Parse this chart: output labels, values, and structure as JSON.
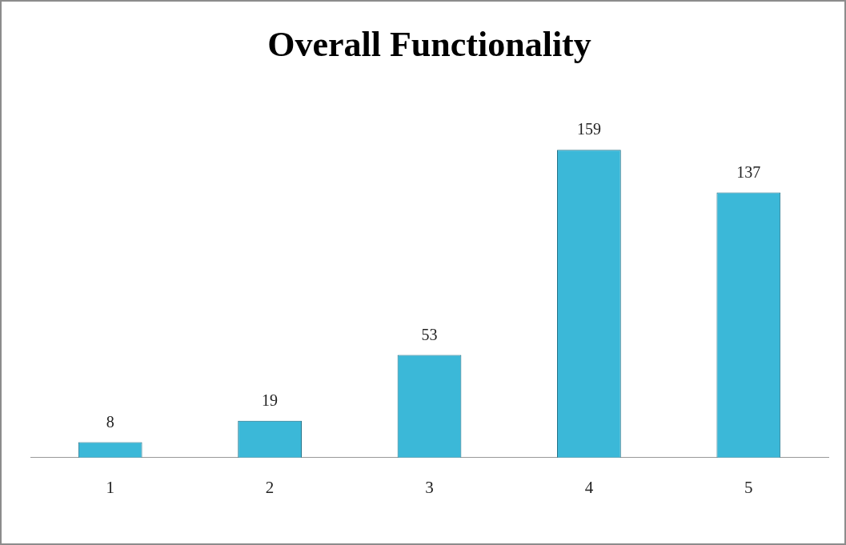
{
  "chart_data": {
    "type": "bar",
    "title": "Overall Functionality",
    "categories": [
      "1",
      "2",
      "3",
      "4",
      "5"
    ],
    "values": [
      8,
      19,
      53,
      159,
      137
    ],
    "color": "#3bb8d8",
    "data_labels": true,
    "legend": false,
    "grid": false
  }
}
